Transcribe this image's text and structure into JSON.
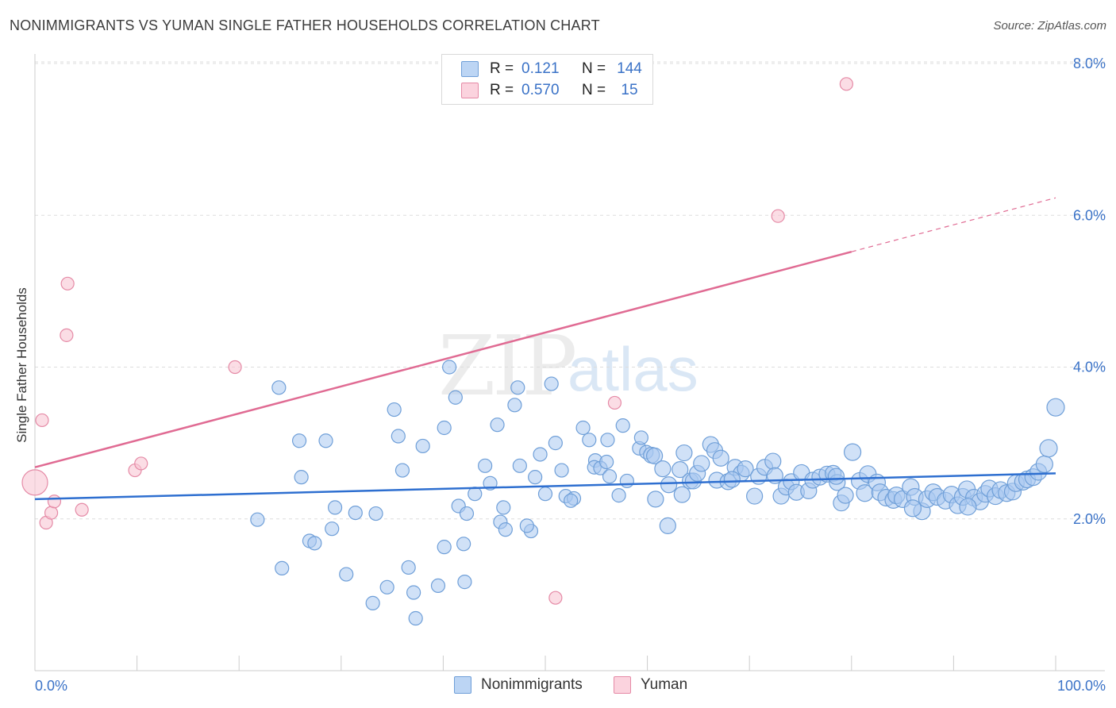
{
  "title": "NONIMMIGRANTS VS YUMAN SINGLE FATHER HOUSEHOLDS CORRELATION CHART",
  "source": "Source: ZipAtlas.com",
  "watermark": {
    "zip": "ZIP",
    "atlas": "atlas"
  },
  "legend_top": [
    {
      "r_label": "R =",
      "r_value": "0.121",
      "n_label": "N =",
      "n_value": "144",
      "color": "#a9c8f0"
    },
    {
      "r_label": "R =",
      "r_value": "0.570",
      "n_label": "N =",
      "n_value": "15",
      "color": "#f5b8c9"
    }
  ],
  "legend_bottom": [
    "Nonimmigrants",
    "Yuman"
  ],
  "colors": {
    "blue_fill": "#a9c8f0",
    "blue_stroke": "#6f9fd8",
    "blue_line": "#2e6fd0",
    "pink_fill": "#f8c6d4",
    "pink_stroke": "#e58aa6",
    "pink_line": "#e06b93",
    "tick_label": "#3a72c7",
    "grid": "#dddddd"
  },
  "chart_data": {
    "type": "scatter",
    "title": "NONIMMIGRANTS VS YUMAN SINGLE FATHER HOUSEHOLDS CORRELATION CHART",
    "xlabel": "",
    "ylabel": "Single Father Households",
    "xlim": [
      0,
      100
    ],
    "ylim": [
      0,
      8.0
    ],
    "x_tick_labels": [
      "0.0%",
      "100.0%"
    ],
    "y_ticks": [
      2.0,
      4.0,
      6.0,
      8.0
    ],
    "y_tick_labels": [
      "2.0%",
      "4.0%",
      "6.0%",
      "8.0%"
    ],
    "series": [
      {
        "name": "Nonimmigrants",
        "r": 0.121,
        "n": 144,
        "trend": {
          "x0": 0,
          "y0": 2.26,
          "x1": 100,
          "y1": 2.6
        },
        "points": [
          [
            21.8,
            1.99
          ],
          [
            23.9,
            3.73
          ],
          [
            24.2,
            1.35
          ],
          [
            25.9,
            3.03
          ],
          [
            26.1,
            2.55
          ],
          [
            26.9,
            1.71
          ],
          [
            27.4,
            1.68
          ],
          [
            28.5,
            3.03
          ],
          [
            29.1,
            1.87
          ],
          [
            29.4,
            2.15
          ],
          [
            30.5,
            1.27
          ],
          [
            31.4,
            2.08
          ],
          [
            33.1,
            0.89
          ],
          [
            33.4,
            2.07
          ],
          [
            34.5,
            1.1
          ],
          [
            35.2,
            3.44
          ],
          [
            35.6,
            3.09
          ],
          [
            36.0,
            2.64
          ],
          [
            36.6,
            1.36
          ],
          [
            37.1,
            1.03
          ],
          [
            37.3,
            0.69
          ],
          [
            38.0,
            2.96
          ],
          [
            39.5,
            1.12
          ],
          [
            40.6,
            4.0
          ],
          [
            40.1,
            3.2
          ],
          [
            40.1,
            1.63
          ],
          [
            41.2,
            3.6
          ],
          [
            41.5,
            2.17
          ],
          [
            42.0,
            1.67
          ],
          [
            42.3,
            2.07
          ],
          [
            42.1,
            1.17
          ],
          [
            43.1,
            2.33
          ],
          [
            44.1,
            2.7
          ],
          [
            45.6,
            1.96
          ],
          [
            44.6,
            2.47
          ],
          [
            45.3,
            3.24
          ],
          [
            45.9,
            2.15
          ],
          [
            46.1,
            1.86
          ],
          [
            47.0,
            3.5
          ],
          [
            47.3,
            3.73
          ],
          [
            47.5,
            2.7
          ],
          [
            48.6,
            1.84
          ],
          [
            48.2,
            1.91
          ],
          [
            49.0,
            2.55
          ],
          [
            49.5,
            2.85
          ],
          [
            50.0,
            2.33
          ],
          [
            50.6,
            3.78
          ],
          [
            51.0,
            3.0
          ],
          [
            51.6,
            2.64
          ],
          [
            52.0,
            2.3
          ],
          [
            52.8,
            2.27
          ],
          [
            52.5,
            2.24
          ],
          [
            53.7,
            3.2
          ],
          [
            54.3,
            3.04
          ],
          [
            54.9,
            2.77
          ],
          [
            54.8,
            2.68
          ],
          [
            55.4,
            2.67
          ],
          [
            56.1,
            3.04
          ],
          [
            56.3,
            2.56
          ],
          [
            57.2,
            2.31
          ],
          [
            57.6,
            3.23
          ],
          [
            58.0,
            2.5
          ],
          [
            59.2,
            2.93
          ],
          [
            59.4,
            3.07
          ],
          [
            59.9,
            2.88
          ],
          [
            60.4,
            2.84
          ],
          [
            60.7,
            2.83
          ],
          [
            60.8,
            2.26
          ],
          [
            61.5,
            2.66
          ],
          [
            62.0,
            1.91
          ],
          [
            62.1,
            2.45
          ],
          [
            63.2,
            2.65
          ],
          [
            63.6,
            2.87
          ],
          [
            64.2,
            2.5
          ],
          [
            64.5,
            2.5
          ],
          [
            64.9,
            2.6
          ],
          [
            65.3,
            2.73
          ],
          [
            66.2,
            2.98
          ],
          [
            66.6,
            2.9
          ],
          [
            66.8,
            2.51
          ],
          [
            67.2,
            2.8
          ],
          [
            67.9,
            2.49
          ],
          [
            68.6,
            2.68
          ],
          [
            69.2,
            2.6
          ],
          [
            69.6,
            2.66
          ],
          [
            70.5,
            2.3
          ],
          [
            70.9,
            2.56
          ],
          [
            71.5,
            2.68
          ],
          [
            72.3,
            2.76
          ],
          [
            72.5,
            2.57
          ],
          [
            73.1,
            2.3
          ],
          [
            73.6,
            2.42
          ],
          [
            74.1,
            2.49
          ],
          [
            74.6,
            2.35
          ],
          [
            75.1,
            2.61
          ],
          [
            75.8,
            2.37
          ],
          [
            76.2,
            2.51
          ],
          [
            76.9,
            2.55
          ],
          [
            77.6,
            2.59
          ],
          [
            78.2,
            2.6
          ],
          [
            78.6,
            2.48
          ],
          [
            79.0,
            2.21
          ],
          [
            79.4,
            2.31
          ],
          [
            80.1,
            2.88
          ],
          [
            80.8,
            2.5
          ],
          [
            81.3,
            2.34
          ],
          [
            81.6,
            2.59
          ],
          [
            82.5,
            2.48
          ],
          [
            82.8,
            2.35
          ],
          [
            83.4,
            2.28
          ],
          [
            84.1,
            2.25
          ],
          [
            84.4,
            2.31
          ],
          [
            85.0,
            2.26
          ],
          [
            85.8,
            2.42
          ],
          [
            86.2,
            2.29
          ],
          [
            86.9,
            2.1
          ],
          [
            87.4,
            2.26
          ],
          [
            88.0,
            2.35
          ],
          [
            88.4,
            2.29
          ],
          [
            89.2,
            2.24
          ],
          [
            89.8,
            2.32
          ],
          [
            90.4,
            2.18
          ],
          [
            90.9,
            2.29
          ],
          [
            91.3,
            2.39
          ],
          [
            92.0,
            2.28
          ],
          [
            92.6,
            2.23
          ],
          [
            93.1,
            2.33
          ],
          [
            93.5,
            2.4
          ],
          [
            94.1,
            2.3
          ],
          [
            94.6,
            2.38
          ],
          [
            95.2,
            2.34
          ],
          [
            95.8,
            2.36
          ],
          [
            96.1,
            2.47
          ],
          [
            96.8,
            2.49
          ],
          [
            97.2,
            2.52
          ],
          [
            97.8,
            2.55
          ],
          [
            98.3,
            2.62
          ],
          [
            98.9,
            2.72
          ],
          [
            99.3,
            2.93
          ],
          [
            100.0,
            3.47
          ],
          [
            68.3,
            2.52
          ],
          [
            78.5,
            2.56
          ],
          [
            86.0,
            2.14
          ],
          [
            91.4,
            2.16
          ],
          [
            63.4,
            2.32
          ],
          [
            56.0,
            2.75
          ]
        ]
      },
      {
        "name": "Yuman",
        "r": 0.57,
        "n": 15,
        "trend": {
          "x0": 0,
          "y0": 2.68,
          "x1": 100,
          "y1": 6.23,
          "solid_until": 80
        },
        "points": [
          [
            0.0,
            2.48
          ],
          [
            0.7,
            3.3
          ],
          [
            1.1,
            1.95
          ],
          [
            1.6,
            2.08
          ],
          [
            1.9,
            2.23
          ],
          [
            3.2,
            5.1
          ],
          [
            3.1,
            4.42
          ],
          [
            4.6,
            2.12
          ],
          [
            9.8,
            2.64
          ],
          [
            10.4,
            2.73
          ],
          [
            19.6,
            4.0
          ],
          [
            51.0,
            0.96
          ],
          [
            56.8,
            3.53
          ],
          [
            72.8,
            5.99
          ],
          [
            79.5,
            7.73
          ]
        ]
      }
    ],
    "grid": true,
    "legend_position": "top-center"
  }
}
